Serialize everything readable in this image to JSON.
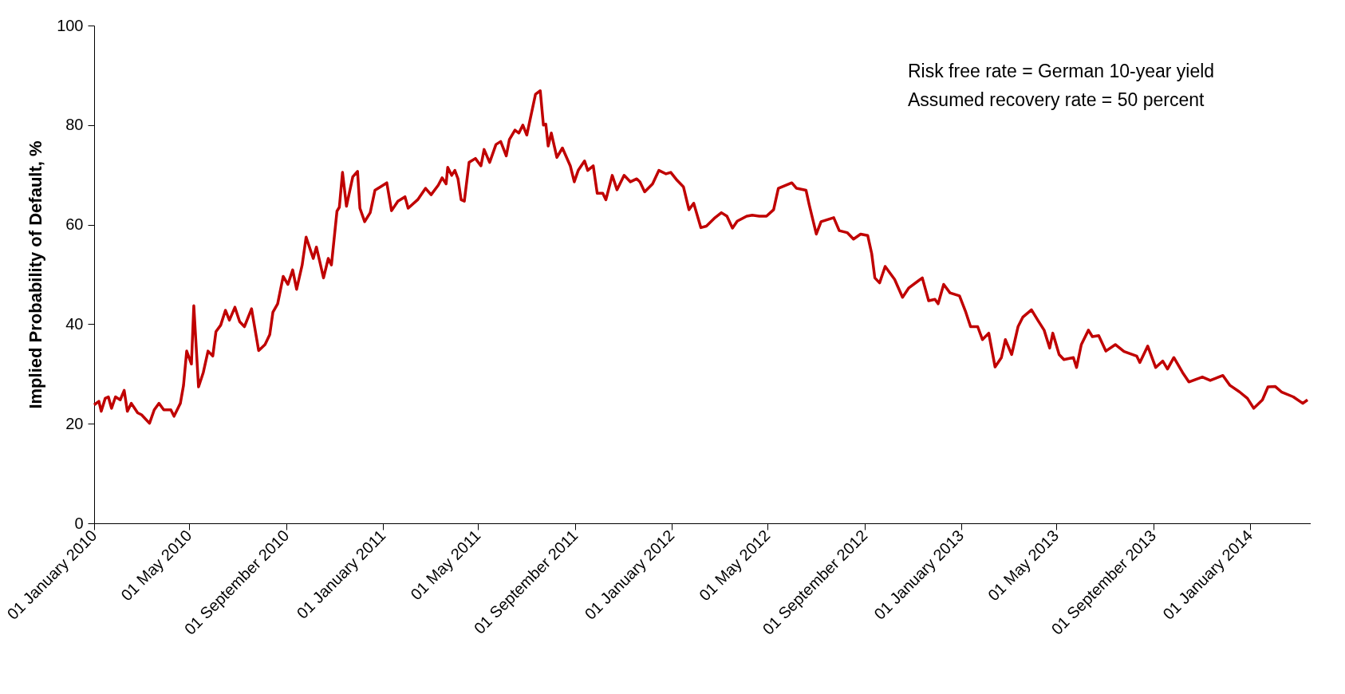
{
  "chart_data": {
    "type": "line",
    "ylabel": "Implied Probability of Default, %",
    "annotations": [
      "Risk free rate = German 10-year yield",
      "Assumed recovery rate = 50 percent"
    ],
    "xlim": [
      "2010-01-01",
      "2014-03-19"
    ],
    "xticks": [
      {
        "value": "2010-01-01",
        "label": "01 January 2010"
      },
      {
        "value": "2010-05-01",
        "label": "01 May 2010"
      },
      {
        "value": "2010-09-01",
        "label": "01 September 2010"
      },
      {
        "value": "2011-01-01",
        "label": "01 January 2011"
      },
      {
        "value": "2011-05-01",
        "label": "01 May 2011"
      },
      {
        "value": "2011-09-01",
        "label": "01 September 2011"
      },
      {
        "value": "2012-01-01",
        "label": "01 January 2012"
      },
      {
        "value": "2012-05-01",
        "label": "01 May 2012"
      },
      {
        "value": "2012-09-01",
        "label": "01 September 2012"
      },
      {
        "value": "2013-01-01",
        "label": "01 January 2013"
      },
      {
        "value": "2013-05-01",
        "label": "01 May 2013"
      },
      {
        "value": "2013-09-01",
        "label": "01 September 2013"
      },
      {
        "value": "2014-01-01",
        "label": "01 January 2014"
      }
    ],
    "ylim": [
      0,
      100
    ],
    "yticks": [
      0,
      20,
      40,
      60,
      80,
      100
    ],
    "grid": false,
    "marker": "none",
    "line_style": "solid",
    "x": [
      "2010-01-01",
      "2010-01-07",
      "2010-01-10",
      "2010-01-15",
      "2010-01-19",
      "2010-01-23",
      "2010-01-28",
      "2010-02-03",
      "2010-02-08",
      "2010-02-12",
      "2010-02-17",
      "2010-02-25",
      "2010-03-02",
      "2010-03-12",
      "2010-03-18",
      "2010-03-24",
      "2010-03-30",
      "2010-04-08",
      "2010-04-12",
      "2010-04-20",
      "2010-04-24",
      "2010-04-28",
      "2010-05-04",
      "2010-05-07",
      "2010-05-13",
      "2010-05-19",
      "2010-05-25",
      "2010-05-31",
      "2010-06-04",
      "2010-06-10",
      "2010-06-16",
      "2010-06-21",
      "2010-06-28",
      "2010-07-04",
      "2010-07-10",
      "2010-07-19",
      "2010-07-28",
      "2010-08-05",
      "2010-08-11",
      "2010-08-15",
      "2010-08-21",
      "2010-08-28",
      "2010-09-03",
      "2010-09-09",
      "2010-09-14",
      "2010-09-21",
      "2010-09-26",
      "2010-10-05",
      "2010-10-09",
      "2010-10-18",
      "2010-10-24",
      "2010-10-28",
      "2010-11-04",
      "2010-11-07",
      "2010-11-11",
      "2010-11-16",
      "2010-11-24",
      "2010-11-30",
      "2010-12-03",
      "2010-12-09",
      "2010-12-16",
      "2010-12-22",
      "2010-12-29",
      "2011-01-06",
      "2011-01-12",
      "2011-01-20",
      "2011-01-29",
      "2011-02-02",
      "2011-02-14",
      "2011-02-24",
      "2011-03-03",
      "2011-03-12",
      "2011-03-17",
      "2011-03-22",
      "2011-03-24",
      "2011-03-29",
      "2011-04-02",
      "2011-04-06",
      "2011-04-10",
      "2011-04-14",
      "2011-04-20",
      "2011-04-28",
      "2011-05-05",
      "2011-05-09",
      "2011-05-16",
      "2011-05-24",
      "2011-05-30",
      "2011-06-06",
      "2011-06-10",
      "2011-06-17",
      "2011-06-22",
      "2011-06-27",
      "2011-07-02",
      "2011-07-06",
      "2011-07-13",
      "2011-07-19",
      "2011-07-23",
      "2011-07-26",
      "2011-07-29",
      "2011-08-02",
      "2011-08-09",
      "2011-08-16",
      "2011-08-26",
      "2011-08-31",
      "2011-09-05",
      "2011-09-13",
      "2011-09-17",
      "2011-09-24",
      "2011-09-29",
      "2011-10-06",
      "2011-10-10",
      "2011-10-18",
      "2011-10-24",
      "2011-11-02",
      "2011-11-10",
      "2011-11-18",
      "2011-11-22",
      "2011-11-28",
      "2011-12-08",
      "2011-12-16",
      "2011-12-25",
      "2011-12-31",
      "2012-01-08",
      "2012-01-16",
      "2012-01-23",
      "2012-01-29",
      "2012-02-07",
      "2012-02-14",
      "2012-02-25",
      "2012-03-04",
      "2012-03-11",
      "2012-03-18",
      "2012-03-24",
      "2012-04-05",
      "2012-04-12",
      "2012-04-21",
      "2012-04-30",
      "2012-05-09",
      "2012-05-15",
      "2012-06-01",
      "2012-06-07",
      "2012-06-19",
      "2012-06-23",
      "2012-07-02",
      "2012-07-08",
      "2012-07-24",
      "2012-07-31",
      "2012-08-10",
      "2012-08-18",
      "2012-08-27",
      "2012-09-05",
      "2012-09-10",
      "2012-09-14",
      "2012-09-20",
      "2012-09-27",
      "2012-10-09",
      "2012-10-19",
      "2012-10-27",
      "2012-11-07",
      "2012-11-13",
      "2012-11-21",
      "2012-11-29",
      "2012-12-03",
      "2012-12-10",
      "2012-12-18",
      "2012-12-30",
      "2013-01-07",
      "2013-01-13",
      "2013-01-22",
      "2013-01-28",
      "2013-02-05",
      "2013-02-13",
      "2013-02-21",
      "2013-02-26",
      "2013-03-06",
      "2013-03-14",
      "2013-03-20",
      "2013-03-31",
      "2013-04-08",
      "2013-04-16",
      "2013-04-23",
      "2013-04-27",
      "2013-05-05",
      "2013-05-11",
      "2013-05-23",
      "2013-05-27",
      "2013-06-02",
      "2013-06-11",
      "2013-06-16",
      "2013-06-24",
      "2013-07-03",
      "2013-07-15",
      "2013-07-26",
      "2013-08-11",
      "2013-08-15",
      "2013-08-25",
      "2013-09-04",
      "2013-09-13",
      "2013-09-19",
      "2013-09-27",
      "2013-10-08",
      "2013-10-16",
      "2013-11-02",
      "2013-11-12",
      "2013-11-28",
      "2013-12-07",
      "2013-12-19",
      "2013-12-29",
      "2014-01-06",
      "2014-01-17",
      "2014-01-24",
      "2014-02-02",
      "2014-02-10",
      "2014-02-25",
      "2014-03-09",
      "2014-03-15"
    ],
    "series": [
      {
        "color": "#c00000",
        "values": [
          23.8,
          24.5,
          22.5,
          25.1,
          25.4,
          23.1,
          25.4,
          24.8,
          26.7,
          22.5,
          24.1,
          22.2,
          21.8,
          20.1,
          22.8,
          24.1,
          22.8,
          22.8,
          21.5,
          24.1,
          27.7,
          34.6,
          32.0,
          43.7,
          27.4,
          30.3,
          34.6,
          33.6,
          38.5,
          39.8,
          42.8,
          40.8,
          43.4,
          40.5,
          39.5,
          43.1,
          34.7,
          35.9,
          37.9,
          42.4,
          44.1,
          49.6,
          48.0,
          50.9,
          47.0,
          51.9,
          57.5,
          53.2,
          55.5,
          49.3,
          53.2,
          51.9,
          62.7,
          63.5,
          70.5,
          63.7,
          69.6,
          70.7,
          63.3,
          60.6,
          62.4,
          66.9,
          67.6,
          68.4,
          62.8,
          64.7,
          65.6,
          63.3,
          65.0,
          67.3,
          66.0,
          67.9,
          69.4,
          68.2,
          71.5,
          69.9,
          70.9,
          69.2,
          65.0,
          64.7,
          72.5,
          73.3,
          71.8,
          75.1,
          72.5,
          76.1,
          76.7,
          73.8,
          77.1,
          79.0,
          78.4,
          80.0,
          78.0,
          81.0,
          86.2,
          86.9,
          80.0,
          80.2,
          75.8,
          78.4,
          73.5,
          75.4,
          71.8,
          68.6,
          70.9,
          72.8,
          70.9,
          71.8,
          66.3,
          66.3,
          65.0,
          69.9,
          67.0,
          69.9,
          68.6,
          69.2,
          68.6,
          66.6,
          68.2,
          70.9,
          70.2,
          70.5,
          68.9,
          67.6,
          63.0,
          64.3,
          59.4,
          59.7,
          61.4,
          62.4,
          61.7,
          59.3,
          60.7,
          61.7,
          61.9,
          61.7,
          61.7,
          63.0,
          67.3,
          68.4,
          67.3,
          66.9,
          64.0,
          58.1,
          60.6,
          61.4,
          58.8,
          58.4,
          57.1,
          58.1,
          57.8,
          54.2,
          49.3,
          48.3,
          51.6,
          49.0,
          45.4,
          47.3,
          48.6,
          49.3,
          44.7,
          45.0,
          44.1,
          48.0,
          46.3,
          45.7,
          42.4,
          39.5,
          39.5,
          36.9,
          38.2,
          31.4,
          33.3,
          36.9,
          33.9,
          39.5,
          41.4,
          42.9,
          40.8,
          38.8,
          35.2,
          38.2,
          33.9,
          32.9,
          33.3,
          31.3,
          35.9,
          38.8,
          37.5,
          37.7,
          34.6,
          35.9,
          34.5,
          33.6,
          32.3,
          35.6,
          31.3,
          32.6,
          31.0,
          33.3,
          30.3,
          28.4,
          29.4,
          28.7,
          29.7,
          27.7,
          26.4,
          25.1,
          23.1,
          24.8,
          27.4,
          27.5,
          26.4,
          25.4,
          24.1,
          24.8
        ]
      }
    ]
  }
}
